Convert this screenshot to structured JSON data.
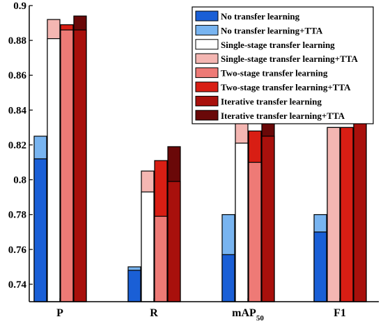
{
  "chart_data": {
    "type": "bar",
    "title": "",
    "xlabel": "",
    "ylabel": "",
    "ylim": [
      0.73,
      0.9
    ],
    "yticks": [
      "0.74",
      "0.76",
      "0.78",
      "0.8",
      "0.82",
      "0.84",
      "0.86",
      "0.88",
      "0.9"
    ],
    "categories": [
      "P",
      "R",
      "mAP",
      "F1"
    ],
    "category_subscripts": [
      "",
      "",
      "50",
      ""
    ],
    "legend_position": "top-right",
    "series": [
      {
        "name": "No transfer learning",
        "color": "#1a5fd6",
        "values": [
          0.812,
          0.748,
          0.757,
          0.77
        ]
      },
      {
        "name": "No transfer learning+TTA",
        "color": "#78b4f0",
        "values": [
          0.825,
          0.75,
          0.78,
          0.78
        ]
      },
      {
        "name": "Single-stage transfer learning",
        "color": "#ffffff",
        "values": [
          0.881,
          0.793,
          0.821,
          0.83
        ]
      },
      {
        "name": "Single-stage transfer learning+TTA",
        "color": "#f4b6b2",
        "values": [
          0.892,
          0.805,
          0.846,
          0.83
        ]
      },
      {
        "name": "Two-stage transfer learning",
        "color": "#ee7a76",
        "values": [
          0.886,
          0.779,
          0.81,
          0.83
        ]
      },
      {
        "name": "Two-stage transfer learning+TTA",
        "color": "#d81e14",
        "values": [
          0.889,
          0.811,
          0.828,
          0.83
        ]
      },
      {
        "name": "Iterative transfer learning",
        "color": "#a8100c",
        "values": [
          0.886,
          0.799,
          0.825,
          0.836
        ]
      },
      {
        "name": "Iterative transfer learning+TTA",
        "color": "#6a0808",
        "values": [
          0.894,
          0.819,
          0.851,
          0.84
        ]
      }
    ],
    "pairing": [
      [
        0,
        1
      ],
      [
        2,
        3
      ],
      [
        4,
        5
      ],
      [
        6,
        7
      ]
    ],
    "grid": false
  }
}
